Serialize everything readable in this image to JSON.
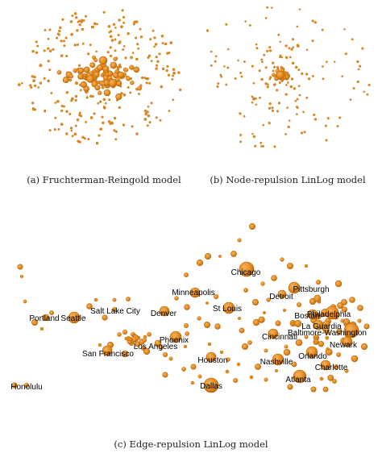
{
  "figure": {
    "captions": {
      "a": "(a) Fruchterman-Reingold model",
      "b": "(b) Node-repulsion LinLog model",
      "c": "(c) Edge-repulsion LinLog model"
    },
    "node_color": "#E28A1E",
    "node_shade": "#B8650C"
  },
  "chart_data": [
    {
      "type": "scatter",
      "panel": "a",
      "description_of_marks": "network nodes (airports)",
      "x": [],
      "y": []
    },
    {
      "type": "scatter",
      "panel": "b",
      "x": [],
      "y": []
    },
    {
      "type": "scatter",
      "panel": "c",
      "labels": [
        "Chicago",
        "Minneapolis",
        "Pittsburgh",
        "Detroit",
        "St Louis",
        "Denver",
        "Salt Lake City",
        "Portland",
        "Seattle",
        "Boston",
        "Philadelphia",
        "La Guardia",
        "Baltimore-Washington",
        "Newark",
        "Cincinnati",
        "Phoenix",
        "Los Angeles",
        "San Francisco",
        "Houston",
        "Nashville",
        "Orlando",
        "Charlotte",
        "Atlanta",
        "Dallas",
        "Honolulu"
      ]
    }
  ]
}
